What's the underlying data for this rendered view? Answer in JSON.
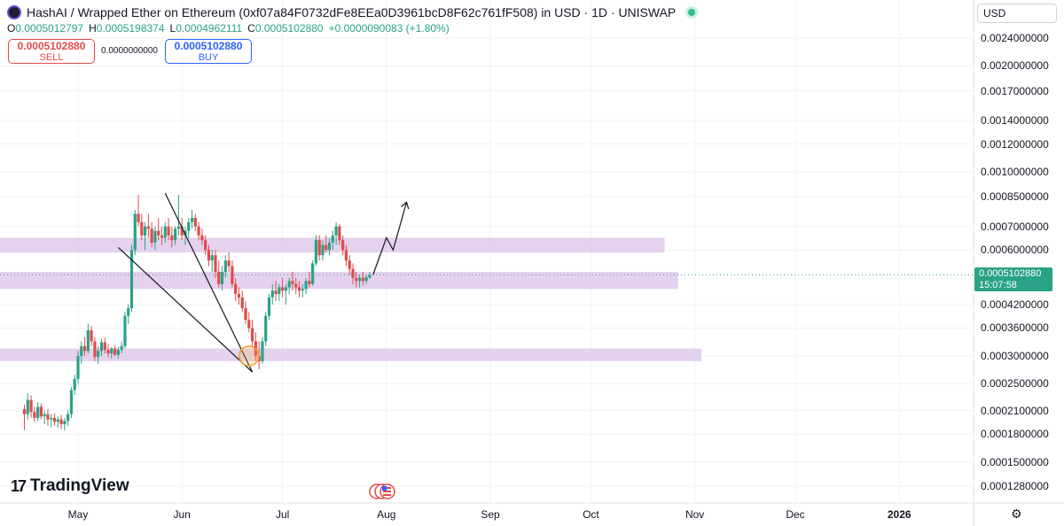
{
  "header": {
    "title": "HashAI / Wrapped Ether on Ethereum (0xf07a84F0732dFe8EEa0D3961bcD8F62c761fF508) in USD · 1D · UNISWAP",
    "ohlc": [
      {
        "key": "O",
        "value": "0.0005012797"
      },
      {
        "key": "H",
        "value": "0.0005198374"
      },
      {
        "key": "L",
        "value": "0.0004962111"
      },
      {
        "key": "C",
        "value": "0.0005102880"
      },
      {
        "key": "",
        "value": "+0.0000090083 (+1.80%)"
      }
    ],
    "sell_price": "0.0005102880",
    "sell_label": "SELL",
    "spread": "0.0000000000",
    "buy_price": "0.0005102880",
    "buy_label": "BUY"
  },
  "currency": "USD",
  "brand": "TradingView",
  "current_price": {
    "value": "0.0005102880",
    "countdown": "15:07:58"
  },
  "colors": {
    "up": "#2aa286",
    "down": "#e14b4b",
    "zone": "#dcc3e8",
    "accent": "#2962ff"
  },
  "chart_data": {
    "type": "candlestick",
    "y_scale": "log",
    "y_ticks": [
      "0.0024000000",
      "0.0020000000",
      "0.0017000000",
      "0.0014000000",
      "0.0012000000",
      "0.0010000000",
      "0.0008500000",
      "0.0007000000",
      "0.0006000000",
      "0.0004200000",
      "0.0003600000",
      "0.0003000000",
      "0.0002500000",
      "0.0002100000",
      "0.0001800000",
      "0.0001500000",
      "0.0001280000"
    ],
    "x_ticks": [
      "May",
      "Jun",
      "Jul",
      "Aug",
      "Sep",
      "Oct",
      "Nov",
      "Dec",
      "2026"
    ],
    "x_range": [
      "2025-04-15",
      "2026-01-31"
    ],
    "candles_start_date": "2025-04-15",
    "candles": [
      [
        0.000212,
        0.000218,
        0.000185,
        0.000205
      ],
      [
        0.000205,
        0.000235,
        0.000198,
        0.000225
      ],
      [
        0.000225,
        0.000232,
        0.0002,
        0.000208
      ],
      [
        0.000208,
        0.000215,
        0.000195,
        0.0002
      ],
      [
        0.0002,
        0.000222,
        0.000196,
        0.000215
      ],
      [
        0.000215,
        0.00022,
        0.000198,
        0.000202
      ],
      [
        0.000202,
        0.00021,
        0.000192,
        0.000205
      ],
      [
        0.000205,
        0.000212,
        0.00019,
        0.000198
      ],
      [
        0.000198,
        0.000205,
        0.000188,
        0.0002
      ],
      [
        0.0002,
        0.000206,
        0.00019,
        0.000195
      ],
      [
        0.000195,
        0.000202,
        0.000188,
        0.000198
      ],
      [
        0.000198,
        0.000204,
        0.000186,
        0.000192
      ],
      [
        0.000192,
        0.0002,
        0.000184,
        0.000196
      ],
      [
        0.000196,
        0.00021,
        0.00019,
        0.000205
      ],
      [
        0.000205,
        0.000245,
        0.0002,
        0.00024
      ],
      [
        0.00024,
        0.000265,
        0.000232,
        0.000258
      ],
      [
        0.000258,
        0.00031,
        0.00025,
        0.0003
      ],
      [
        0.0003,
        0.00033,
        0.000285,
        0.00032
      ],
      [
        0.00032,
        0.00034,
        0.0003,
        0.00031
      ],
      [
        0.00031,
        0.00037,
        0.000305,
        0.000355
      ],
      [
        0.000355,
        0.000365,
        0.00032,
        0.00033
      ],
      [
        0.00033,
        0.00034,
        0.00029,
        0.000298
      ],
      [
        0.000298,
        0.00032,
        0.000285,
        0.00031
      ],
      [
        0.00031,
        0.000335,
        0.0003,
        0.000328
      ],
      [
        0.000328,
        0.000338,
        0.000305,
        0.000312
      ],
      [
        0.000312,
        0.000325,
        0.000298,
        0.000305
      ],
      [
        0.000305,
        0.000318,
        0.000295,
        0.000315
      ],
      [
        0.000315,
        0.000322,
        0.0003,
        0.000302
      ],
      [
        0.000302,
        0.000318,
        0.000295,
        0.000312
      ],
      [
        0.000312,
        0.00033,
        0.000305,
        0.00032
      ],
      [
        0.00032,
        0.0004,
        0.000315,
        0.00039
      ],
      [
        0.00039,
        0.00042,
        0.00037,
        0.00041
      ],
      [
        0.00041,
        0.00062,
        0.0004,
        0.0006
      ],
      [
        0.0006,
        0.00078,
        0.00058,
        0.00076
      ],
      [
        0.00076,
        0.00086,
        0.0007,
        0.00072
      ],
      [
        0.00072,
        0.00076,
        0.00064,
        0.00066
      ],
      [
        0.00066,
        0.00072,
        0.0006,
        0.0007
      ],
      [
        0.0007,
        0.00076,
        0.00065,
        0.00069
      ],
      [
        0.00069,
        0.00072,
        0.00061,
        0.00063
      ],
      [
        0.00063,
        0.0007,
        0.0006,
        0.00068
      ],
      [
        0.00068,
        0.00074,
        0.00064,
        0.00066
      ],
      [
        0.00066,
        0.0007,
        0.00062,
        0.00065
      ],
      [
        0.00065,
        0.00072,
        0.00063,
        0.0007
      ],
      [
        0.0007,
        0.00074,
        0.00064,
        0.00066
      ],
      [
        0.00066,
        0.0007,
        0.00061,
        0.00064
      ],
      [
        0.00064,
        0.0007,
        0.00062,
        0.00069
      ],
      [
        0.00069,
        0.00086,
        0.00066,
        0.0007
      ],
      [
        0.0007,
        0.00074,
        0.00064,
        0.00066
      ],
      [
        0.00066,
        0.0007,
        0.00062,
        0.00068
      ],
      [
        0.00068,
        0.00074,
        0.00065,
        0.00072
      ],
      [
        0.00072,
        0.00078,
        0.00069,
        0.00074
      ],
      [
        0.00074,
        0.00076,
        0.00068,
        0.0007
      ],
      [
        0.0007,
        0.00072,
        0.00064,
        0.00066
      ],
      [
        0.00066,
        0.00069,
        0.00062,
        0.00064
      ],
      [
        0.00064,
        0.00066,
        0.00058,
        0.0006
      ],
      [
        0.0006,
        0.00062,
        0.00054,
        0.00056
      ],
      [
        0.00056,
        0.0006,
        0.00052,
        0.00058
      ],
      [
        0.00058,
        0.0006,
        0.0005,
        0.00052
      ],
      [
        0.00052,
        0.00056,
        0.00047,
        0.00048
      ],
      [
        0.00048,
        0.00054,
        0.00046,
        0.00052
      ],
      [
        0.00052,
        0.00058,
        0.0005,
        0.00056
      ],
      [
        0.00056,
        0.00059,
        0.00052,
        0.00054
      ],
      [
        0.00054,
        0.00056,
        0.00047,
        0.00048
      ],
      [
        0.00048,
        0.0005,
        0.00043,
        0.00045
      ],
      [
        0.00045,
        0.00047,
        0.00042,
        0.00044
      ],
      [
        0.00044,
        0.00046,
        0.0004,
        0.00041
      ],
      [
        0.00041,
        0.00043,
        0.00037,
        0.00038
      ],
      [
        0.00038,
        0.0004,
        0.00035,
        0.00036
      ],
      [
        0.00036,
        0.00038,
        0.00032,
        0.00033
      ],
      [
        0.00033,
        0.00035,
        0.00029,
        0.0003
      ],
      [
        0.0003,
        0.00033,
        0.000275,
        0.00029
      ],
      [
        0.00029,
        0.00034,
        0.000285,
        0.00033
      ],
      [
        0.00033,
        0.0004,
        0.00032,
        0.00039
      ],
      [
        0.00039,
        0.00045,
        0.00038,
        0.00044
      ],
      [
        0.00044,
        0.00048,
        0.00042,
        0.00046
      ],
      [
        0.00046,
        0.00049,
        0.00043,
        0.00045
      ],
      [
        0.00045,
        0.00048,
        0.00043,
        0.00047
      ],
      [
        0.00047,
        0.0005,
        0.00044,
        0.00046
      ],
      [
        0.00046,
        0.00048,
        0.00042,
        0.00047
      ],
      [
        0.00047,
        0.0005,
        0.00045,
        0.00049
      ],
      [
        0.00049,
        0.00052,
        0.00046,
        0.00048
      ],
      [
        0.00048,
        0.0005,
        0.00045,
        0.00047
      ],
      [
        0.00047,
        0.00049,
        0.00044,
        0.00046
      ],
      [
        0.00046,
        0.00048,
        0.00044,
        0.000465
      ],
      [
        0.000465,
        0.0005,
        0.00045,
        0.00049
      ],
      [
        0.00049,
        0.00052,
        0.00047,
        0.00048
      ],
      [
        0.00048,
        0.00056,
        0.000475,
        0.00055
      ],
      [
        0.00055,
        0.00066,
        0.00054,
        0.00064
      ],
      [
        0.00064,
        0.00066,
        0.00056,
        0.00058
      ],
      [
        0.00058,
        0.00064,
        0.00056,
        0.00062
      ],
      [
        0.00062,
        0.00066,
        0.00059,
        0.0006
      ],
      [
        0.0006,
        0.00065,
        0.00058,
        0.00063
      ],
      [
        0.00063,
        0.00068,
        0.0006,
        0.00066
      ],
      [
        0.00066,
        0.00072,
        0.00062,
        0.0007
      ],
      [
        0.0007,
        0.00071,
        0.00062,
        0.00064
      ],
      [
        0.00064,
        0.00066,
        0.00058,
        0.0006
      ],
      [
        0.0006,
        0.00062,
        0.00054,
        0.00056
      ],
      [
        0.00056,
        0.00058,
        0.00051,
        0.00053
      ],
      [
        0.00053,
        0.00055,
        0.00048,
        0.0005
      ],
      [
        0.0005,
        0.00052,
        0.00047,
        0.00049
      ],
      [
        0.00049,
        0.00051,
        0.00047,
        0.0005
      ],
      [
        0.0005,
        0.00052,
        0.000475,
        0.00049
      ],
      [
        0.00049,
        0.00051,
        0.00048,
        0.000502
      ],
      [
        0.000501,
        0.00052,
        0.000496,
        0.00051
      ]
    ],
    "zones": [
      {
        "from": 0.00059,
        "to": 0.00065,
        "end": "2025-10-23"
      },
      {
        "from": 0.000465,
        "to": 0.00052,
        "end": "2025-10-27"
      },
      {
        "from": 0.00029,
        "to": 0.000315,
        "end": "2025-11-03"
      }
    ],
    "lines": [
      {
        "points": [
          [
            "2025-05-27",
            0.00087
          ],
          [
            "2025-06-22",
            0.00027
          ]
        ]
      },
      {
        "points": [
          [
            "2025-05-13",
            0.00061
          ],
          [
            "2025-06-22",
            0.00027
          ]
        ]
      }
    ],
    "projection": {
      "points": [
        [
          "2025-07-28",
          0.00051
        ],
        [
          "2025-08-01",
          0.00065
        ],
        [
          "2025-08-03",
          0.0006
        ],
        [
          "2025-08-07",
          0.00082
        ]
      ]
    },
    "highlight": {
      "date": "2025-06-21",
      "price": 0.0003
    },
    "last_price": 0.000510288
  }
}
